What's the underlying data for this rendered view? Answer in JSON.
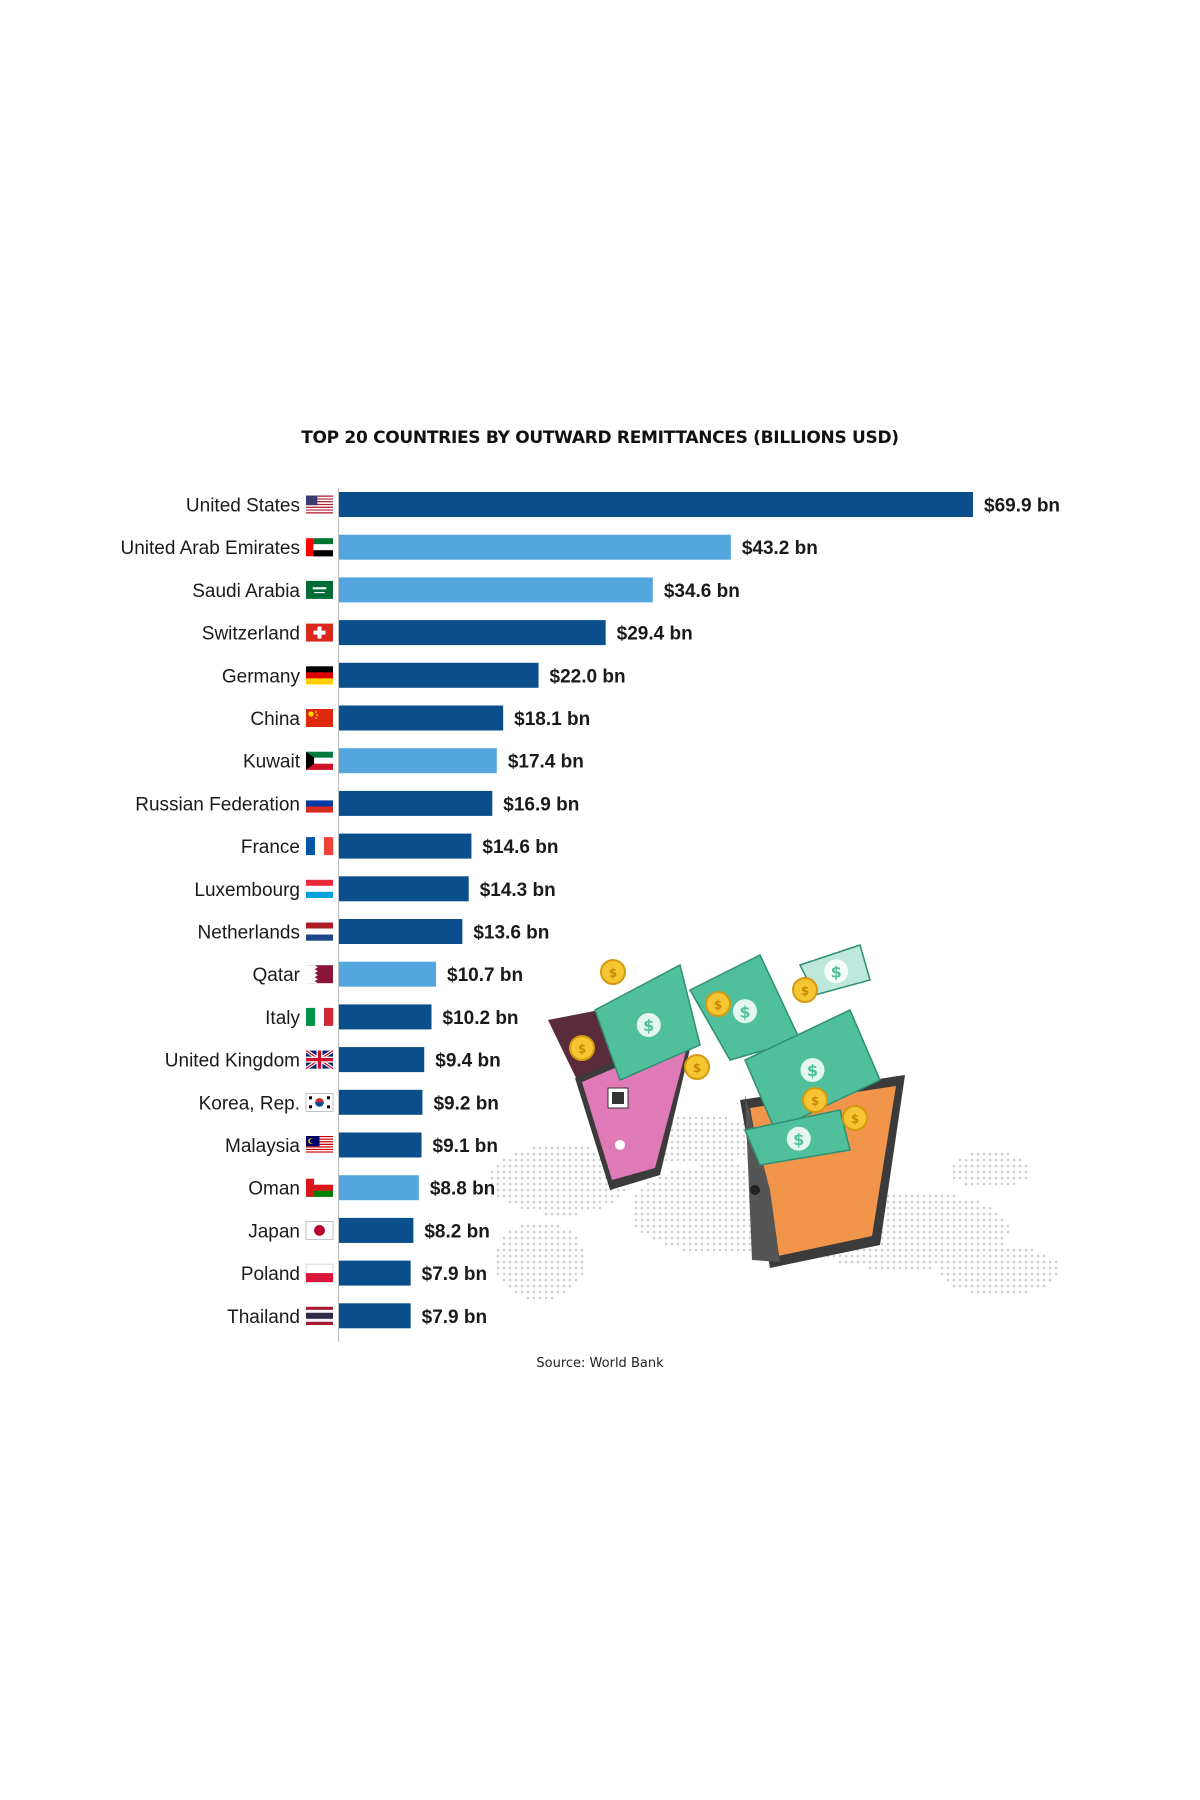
{
  "chart_data": {
    "type": "bar",
    "orientation": "horizontal",
    "title": "TOP 20 COUNTRIES BY OUTWARD REMITTANCES (BILLIONS USD)",
    "source": "Source: World Bank",
    "categories": [
      "United States",
      "United Arab Emirates",
      "Saudi Arabia",
      "Switzerland",
      "Germany",
      "China",
      "Kuwait",
      "Russian Federation",
      "France",
      "Luxembourg",
      "Netherlands",
      "Qatar",
      "Italy",
      "United Kingdom",
      "Korea, Rep.",
      "Malaysia",
      "Oman",
      "Japan",
      "Poland",
      "Thailand"
    ],
    "values": [
      69.9,
      43.2,
      34.6,
      29.4,
      22.0,
      18.1,
      17.4,
      16.9,
      14.6,
      14.3,
      13.6,
      10.7,
      10.2,
      9.4,
      9.2,
      9.1,
      8.8,
      8.2,
      7.9,
      7.9
    ],
    "value_labels": [
      "$69.9 bn",
      "$43.2 bn",
      "$34.6 bn",
      "$29.4 bn",
      "$22.0 bn",
      "$18.1 bn",
      "$17.4 bn",
      "$16.9 bn",
      "$14.6 bn",
      "$14.3 bn",
      "$13.6 bn",
      "$10.7 bn",
      "$10.2 bn",
      "$9.4 bn",
      "$9.2 bn",
      "$9.1 bn",
      "$8.8 bn",
      "$8.2 bn",
      "$7.9 bn",
      "$7.9 bn"
    ],
    "bar_highlight": [
      false,
      true,
      true,
      false,
      false,
      false,
      true,
      false,
      false,
      false,
      false,
      true,
      false,
      false,
      false,
      false,
      true,
      false,
      false,
      false
    ],
    "flags": [
      "flag-us-icon",
      "flag-ae-icon",
      "flag-sa-icon",
      "flag-ch-icon",
      "flag-de-icon",
      "flag-cn-icon",
      "flag-kw-icon",
      "flag-ru-icon",
      "flag-fr-icon",
      "flag-lu-icon",
      "flag-nl-icon",
      "flag-qa-icon",
      "flag-it-icon",
      "flag-gb-icon",
      "flag-kr-icon",
      "flag-my-icon",
      "flag-om-icon",
      "flag-jp-icon",
      "flag-pl-icon",
      "flag-th-icon"
    ],
    "xlim": [
      0,
      69.9
    ],
    "grid": false,
    "legend": "none"
  },
  "colors": {
    "bar_dark": "#0b4e8c",
    "bar_light": "#54a7de"
  },
  "illustration": {
    "name": "phones-wallets-money-illustration"
  }
}
